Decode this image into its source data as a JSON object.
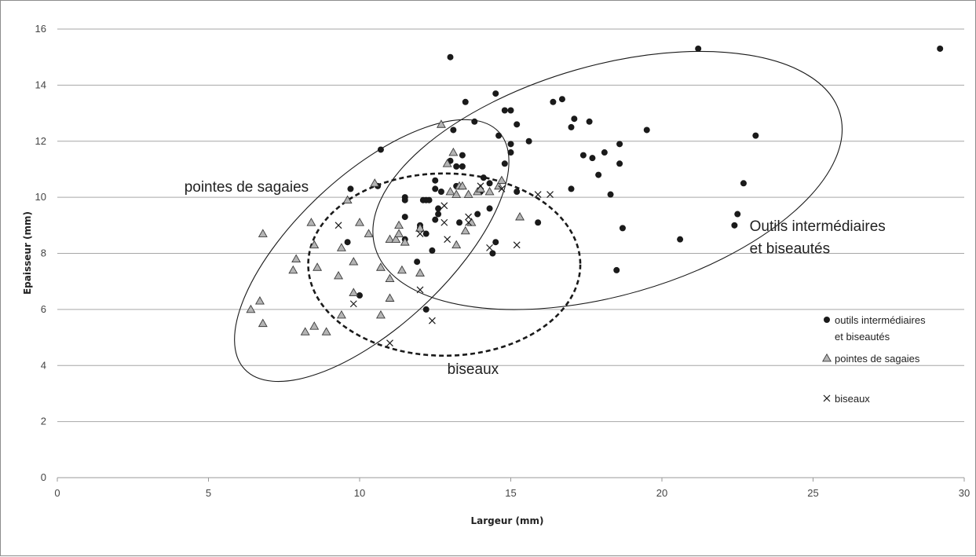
{
  "chart_data": {
    "type": "scatter",
    "xlabel": "Largeur (mm)",
    "ylabel": "Epaisseur (mm)",
    "xlim": [
      0,
      30
    ],
    "ylim": [
      0,
      16
    ],
    "xticks": [
      0,
      5,
      10,
      15,
      20,
      25,
      30
    ],
    "yticks": [
      0,
      2,
      4,
      6,
      8,
      10,
      12,
      14,
      16
    ],
    "grid": "horizontal",
    "legend_position": "right",
    "series": [
      {
        "name": "outils intermédiaires et biseautés",
        "legend_lines": [
          "outils intermédiaires",
          "et biseautés"
        ],
        "marker": "circle",
        "color": "#1a1a1a",
        "points": [
          [
            9.6,
            8.4
          ],
          [
            9.7,
            10.3
          ],
          [
            10.0,
            6.5
          ],
          [
            10.6,
            10.4
          ],
          [
            10.7,
            11.7
          ],
          [
            11.5,
            8.5
          ],
          [
            11.5,
            9.3
          ],
          [
            11.5,
            9.9
          ],
          [
            11.5,
            10.0
          ],
          [
            11.9,
            7.7
          ],
          [
            12.0,
            8.9
          ],
          [
            12.0,
            9.0
          ],
          [
            12.1,
            9.9
          ],
          [
            12.2,
            6.0
          ],
          [
            12.2,
            8.7
          ],
          [
            12.2,
            9.9
          ],
          [
            12.3,
            9.9
          ],
          [
            12.4,
            8.1
          ],
          [
            12.5,
            9.2
          ],
          [
            12.5,
            10.3
          ],
          [
            12.5,
            10.6
          ],
          [
            12.6,
            9.4
          ],
          [
            12.6,
            9.6
          ],
          [
            12.7,
            10.2
          ],
          [
            13.0,
            11.3
          ],
          [
            13.0,
            15.0
          ],
          [
            13.1,
            12.4
          ],
          [
            13.2,
            11.1
          ],
          [
            13.2,
            10.4
          ],
          [
            13.3,
            9.1
          ],
          [
            13.4,
            11.1
          ],
          [
            13.4,
            11.5
          ],
          [
            13.5,
            13.4
          ],
          [
            13.8,
            12.7
          ],
          [
            13.9,
            9.4
          ],
          [
            14.0,
            10.2
          ],
          [
            14.1,
            10.7
          ],
          [
            14.3,
            9.6
          ],
          [
            14.3,
            10.5
          ],
          [
            14.4,
            8.0
          ],
          [
            14.5,
            8.4
          ],
          [
            14.5,
            13.7
          ],
          [
            14.6,
            12.2
          ],
          [
            14.8,
            11.2
          ],
          [
            14.8,
            13.1
          ],
          [
            15.0,
            11.9
          ],
          [
            15.0,
            13.1
          ],
          [
            15.0,
            11.6
          ],
          [
            15.2,
            12.6
          ],
          [
            15.2,
            10.2
          ],
          [
            15.6,
            12.0
          ],
          [
            15.9,
            9.1
          ],
          [
            16.4,
            13.4
          ],
          [
            16.7,
            13.5
          ],
          [
            17.0,
            10.3
          ],
          [
            17.0,
            12.5
          ],
          [
            17.1,
            12.8
          ],
          [
            17.4,
            11.5
          ],
          [
            17.6,
            12.7
          ],
          [
            17.7,
            11.4
          ],
          [
            17.9,
            10.8
          ],
          [
            18.1,
            11.6
          ],
          [
            18.3,
            10.1
          ],
          [
            18.5,
            7.4
          ],
          [
            18.6,
            11.9
          ],
          [
            18.6,
            11.2
          ],
          [
            18.7,
            8.9
          ],
          [
            19.5,
            12.4
          ],
          [
            20.6,
            8.5
          ],
          [
            21.2,
            15.3
          ],
          [
            22.4,
            9.0
          ],
          [
            22.5,
            9.4
          ],
          [
            22.7,
            10.5
          ],
          [
            23.1,
            12.2
          ],
          [
            29.2,
            15.3
          ]
        ]
      },
      {
        "name": "pointes de sagaies",
        "legend_lines": [
          "pointes de sagaies"
        ],
        "marker": "triangle",
        "color": "#b4b4b4",
        "points": [
          [
            6.4,
            6.0
          ],
          [
            6.7,
            6.3
          ],
          [
            6.8,
            5.5
          ],
          [
            6.8,
            8.7
          ],
          [
            7.8,
            7.4
          ],
          [
            7.9,
            7.8
          ],
          [
            8.2,
            5.2
          ],
          [
            8.4,
            9.1
          ],
          [
            8.5,
            5.4
          ],
          [
            8.5,
            8.3
          ],
          [
            8.6,
            7.5
          ],
          [
            8.9,
            5.2
          ],
          [
            9.3,
            7.2
          ],
          [
            9.4,
            8.2
          ],
          [
            9.4,
            5.8
          ],
          [
            9.6,
            9.9
          ],
          [
            9.8,
            6.6
          ],
          [
            9.8,
            7.7
          ],
          [
            10.0,
            9.1
          ],
          [
            10.3,
            8.7
          ],
          [
            10.5,
            10.5
          ],
          [
            10.7,
            5.8
          ],
          [
            10.7,
            7.5
          ],
          [
            11.0,
            6.4
          ],
          [
            11.0,
            7.1
          ],
          [
            11.0,
            8.5
          ],
          [
            11.2,
            8.5
          ],
          [
            11.3,
            8.7
          ],
          [
            11.3,
            9.0
          ],
          [
            11.4,
            7.4
          ],
          [
            11.5,
            8.4
          ],
          [
            12.0,
            7.3
          ],
          [
            12.0,
            8.9
          ],
          [
            12.7,
            12.6
          ],
          [
            12.9,
            11.2
          ],
          [
            13.0,
            10.2
          ],
          [
            13.1,
            11.6
          ],
          [
            13.2,
            10.1
          ],
          [
            13.2,
            8.3
          ],
          [
            13.3,
            10.4
          ],
          [
            13.4,
            10.4
          ],
          [
            13.5,
            8.8
          ],
          [
            13.6,
            10.1
          ],
          [
            13.7,
            9.1
          ],
          [
            13.9,
            10.2
          ],
          [
            14.0,
            10.3
          ],
          [
            14.3,
            10.2
          ],
          [
            14.6,
            10.4
          ],
          [
            14.7,
            10.6
          ],
          [
            15.3,
            9.3
          ]
        ]
      },
      {
        "name": "biseaux",
        "legend_lines": [
          "biseaux"
        ],
        "marker": "cross",
        "color": "#1a1a1a",
        "points": [
          [
            9.3,
            9.0
          ],
          [
            9.8,
            6.2
          ],
          [
            11.0,
            4.8
          ],
          [
            12.0,
            6.7
          ],
          [
            12.0,
            8.7
          ],
          [
            12.4,
            5.6
          ],
          [
            12.8,
            9.1
          ],
          [
            12.8,
            9.7
          ],
          [
            12.9,
            8.5
          ],
          [
            13.6,
            9.1
          ],
          [
            13.6,
            9.3
          ],
          [
            14.0,
            10.4
          ],
          [
            14.3,
            8.2
          ],
          [
            14.7,
            10.3
          ],
          [
            15.2,
            8.3
          ],
          [
            15.9,
            10.1
          ],
          [
            16.3,
            10.1
          ]
        ]
      }
    ],
    "annotations": [
      {
        "text": "pointes de sagaies",
        "x": 4.2,
        "y": 10.2
      },
      {
        "text": "Outils intermédiaires",
        "x": 22.9,
        "y": 8.8
      },
      {
        "text": "et biseautés",
        "x": 22.9,
        "y": 8.0
      },
      {
        "text": "biseaux",
        "x": 12.9,
        "y": 3.7
      }
    ],
    "regions": [
      {
        "group": "pointes de sagaies",
        "style": "solid",
        "cx": 10.4,
        "cy": 8.1,
        "rx": 5.75,
        "ry": 2.7,
        "rotation_deg": -43
      },
      {
        "group": "outils intermédiaires et biseautés",
        "style": "solid",
        "cx": 18.2,
        "cy": 10.6,
        "rx": 8.0,
        "ry": 4.1,
        "rotation_deg": -16
      },
      {
        "group": "biseaux",
        "style": "dashed",
        "cx": 12.8,
        "cy": 7.6,
        "rx": 4.5,
        "ry": 3.25,
        "rotation_deg": 0
      }
    ]
  }
}
